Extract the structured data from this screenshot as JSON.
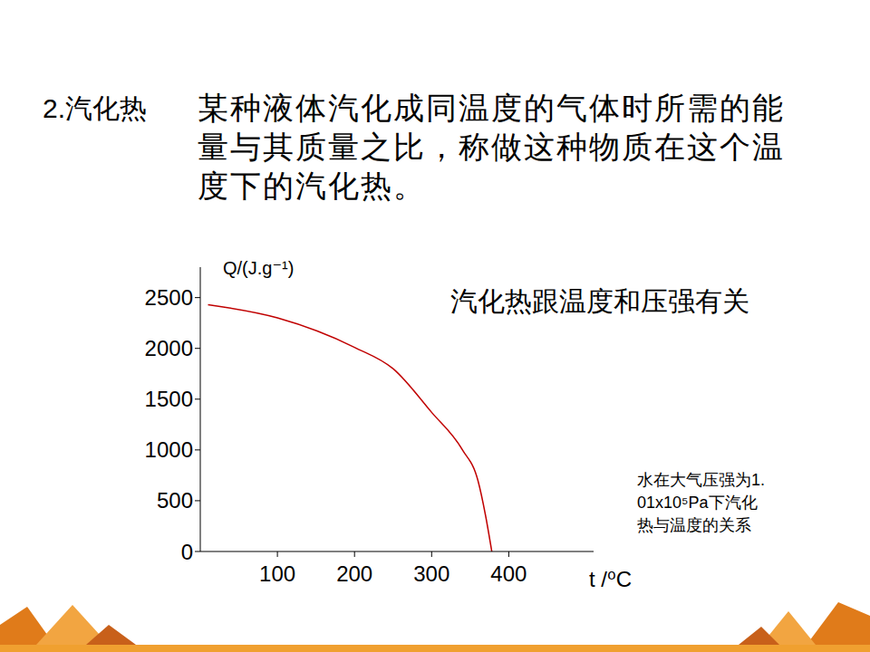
{
  "header": {
    "title": "2.汽化热",
    "definition": "某种液体汽化成同温度的气体时所需的能量与其质量之比，称做这种物质在这个温度下的汽化热。"
  },
  "note": "汽化热跟温度和压强有关",
  "chart_data": {
    "type": "line",
    "x_label": "t /⁰C",
    "y_label": "Q/(J.g⁻¹)",
    "annotation": "水在大气压强为1.01x10⁵Pa下汽化热与温度的关系",
    "x": [
      10,
      100,
      200,
      250,
      300,
      340,
      360,
      370,
      378
    ],
    "values": [
      2430,
      2300,
      2010,
      1800,
      1370,
      1000,
      700,
      350,
      0
    ],
    "color": "#c00000",
    "xlim": [
      0,
      510
    ],
    "xticks": [
      100,
      200,
      300,
      400
    ],
    "ylim": [
      0,
      2800
    ],
    "yticks": [
      0,
      500,
      1000,
      1500,
      2000,
      2500
    ],
    "grid": false
  }
}
